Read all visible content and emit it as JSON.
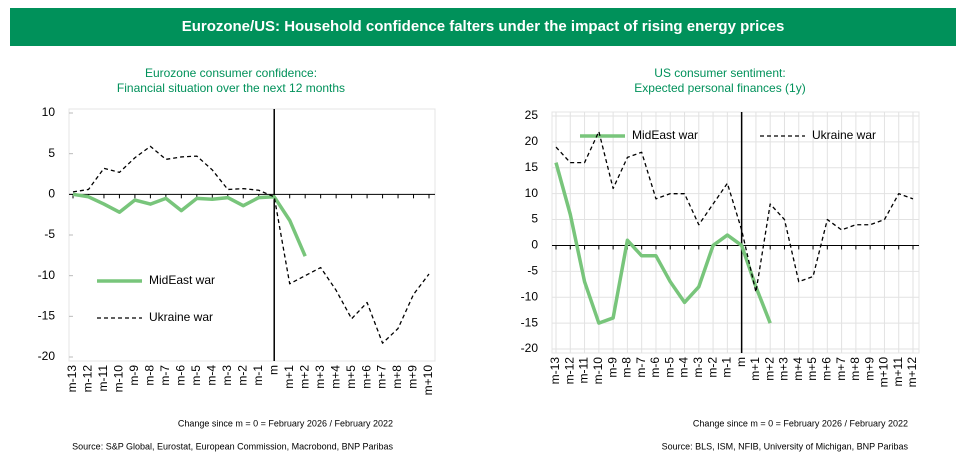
{
  "title": "Eurozone/US: Household confidence falters under the impact of rising energy prices",
  "chart_data": [
    {
      "type": "line",
      "title": [
        "Eurozone consumer confidence:",
        "Financial situation over the next 12 months"
      ],
      "categories": [
        "m-13",
        "m-12",
        "m-11",
        "m-10",
        "m-9",
        "m-8",
        "m-7",
        "m-6",
        "m-5",
        "m-4",
        "m-3",
        "m-2",
        "m-1",
        "m",
        "m+1",
        "m+2",
        "m+3",
        "m+4",
        "m+5",
        "m+6",
        "m+7",
        "m+8",
        "m+9",
        "m+10"
      ],
      "series": [
        {
          "name": "MidEast war",
          "color": "#78c57b",
          "style": "solid",
          "values": [
            0,
            -0.3,
            -1.2,
            -2.2,
            -0.7,
            -1.2,
            -0.5,
            -2,
            -0.5,
            -0.6,
            -0.4,
            -1.4,
            -0.4,
            -0.3,
            -3.2,
            -7.6,
            null,
            null,
            null,
            null,
            null,
            null,
            null,
            null
          ]
        },
        {
          "name": "Ukraine war",
          "color": "#000000",
          "style": "dashed",
          "values": [
            0.3,
            0.6,
            3.2,
            2.7,
            4.5,
            5.9,
            4.3,
            4.6,
            4.7,
            3,
            0.6,
            0.7,
            0.5,
            -0.3,
            -11,
            -10,
            -9,
            -11.8,
            -15.3,
            -13.3,
            -18.3,
            -16.5,
            -12.3,
            -9.8
          ]
        }
      ],
      "ylim": [
        -20,
        10
      ],
      "yticks": [
        -20,
        -15,
        -10,
        -5,
        0,
        5,
        10
      ],
      "grid": false,
      "vline": "m",
      "legend": "lower left",
      "note": "Change since m = 0 = February 2026 / February 2022",
      "source": "Source: S&P Global, Eurostat, European Commission, Macrobond, BNP Paribas"
    },
    {
      "type": "line",
      "title": [
        "US consumer sentiment:",
        "Expected personal finances (1y)"
      ],
      "categories": [
        "m-13",
        "m-12",
        "m-11",
        "m-10",
        "m-9",
        "m-8",
        "m-7",
        "m-6",
        "m-5",
        "m-4",
        "m-3",
        "m-2",
        "m-1",
        "m",
        "m+1",
        "m+2",
        "m+3",
        "m+4",
        "m+5",
        "m+6",
        "m+7",
        "m+8",
        "m+9",
        "m+10",
        "m+11",
        "m+12"
      ],
      "series": [
        {
          "name": "MidEast war",
          "color": "#78c57b",
          "style": "solid",
          "values": [
            16,
            6,
            -7,
            -15,
            -14,
            1,
            -2,
            -2,
            -7,
            -11,
            -8,
            0,
            2,
            0,
            -8,
            -15,
            null,
            null,
            null,
            null,
            null,
            null,
            null,
            null,
            null,
            null
          ]
        },
        {
          "name": "Ukraine war",
          "color": "#000000",
          "style": "dashed",
          "values": [
            19,
            16,
            16,
            22,
            11,
            17,
            18,
            9,
            10,
            10,
            4,
            8,
            12,
            3,
            -9,
            8,
            5,
            -7,
            -6,
            5,
            3,
            4,
            4,
            5,
            10,
            9
          ]
        }
      ],
      "ylim": [
        -20,
        25
      ],
      "yticks": [
        -20,
        -15,
        -10,
        -5,
        0,
        5,
        10,
        15,
        20,
        25
      ],
      "grid": true,
      "vline": "m",
      "legend": "top",
      "note": "Change since m = 0 = February 2026 / February 2022",
      "source": "Source: BLS, ISM, NFIB, University of Michigan, BNP Paribas"
    }
  ]
}
